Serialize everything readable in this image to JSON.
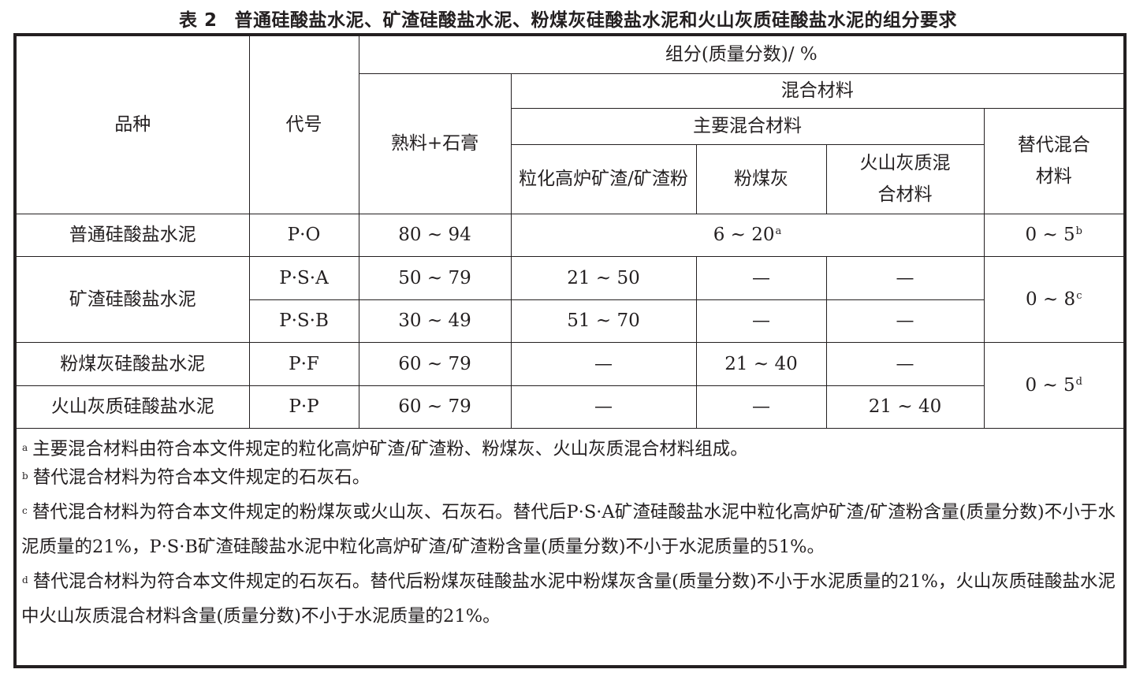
{
  "title": {
    "number": "表 2",
    "text": "普通硅酸盐水泥、矿渣硅酸盐水泥、粉煤灰硅酸盐水泥和火山灰质硅酸盐水泥的组分要求"
  },
  "header": {
    "variety": "品种",
    "code": "代号",
    "composition": "组分(质量分数)/ %",
    "clinker_gypsum": "熟料+石膏",
    "mixed_material": "混合材料",
    "main_mixed": "主要混合材料",
    "slag": "粒化高炉矿渣/矿渣粉",
    "fly_ash": "粉煤灰",
    "pozzolan": "火山灰质混合材料",
    "substitute": "替代混合材料"
  },
  "rows": [
    {
      "variety": "普通硅酸盐水泥",
      "code": "P·O",
      "clinker": "80 ~ 94",
      "main_mixed": "6 ~ 20",
      "main_mixed_note": "a",
      "substitute": "0 ~ 5",
      "substitute_note": "b"
    },
    {
      "variety": "矿渣硅酸盐水泥",
      "code": "P·S·A",
      "clinker": "50 ~ 79",
      "slag": "21 ~ 50",
      "fly_ash": "—",
      "pozzolan": "—",
      "substitute": "0 ~ 8",
      "substitute_note": "c"
    },
    {
      "code": "P·S·B",
      "clinker": "30 ~ 49",
      "slag": "51 ~ 70",
      "fly_ash": "—",
      "pozzolan": "—"
    },
    {
      "variety": "粉煤灰硅酸盐水泥",
      "code": "P·F",
      "clinker": "60 ~ 79",
      "slag": "—",
      "fly_ash": "21 ~ 40",
      "pozzolan": "—",
      "substitute": "0 ~ 5",
      "substitute_note": "d"
    },
    {
      "variety": "火山灰质硅酸盐水泥",
      "code": "P·P",
      "clinker": "60 ~ 79",
      "slag": "—",
      "fly_ash": "—",
      "pozzolan": "21 ~ 40"
    }
  ],
  "notes": [
    {
      "mark": "a",
      "text": "主要混合材料由符合本文件规定的粒化高炉矿渣/矿渣粉、粉煤灰、火山灰质混合材料组成。"
    },
    {
      "mark": "b",
      "text": "替代混合材料为符合本文件规定的石灰石。"
    },
    {
      "mark": "c",
      "text": "替代混合材料为符合本文件规定的粉煤灰或火山灰、石灰石。替代后P·S·A矿渣硅酸盐水泥中粒化高炉矿渣/矿渣粉含量(质量分数)不小于水泥质量的21%，P·S·B矿渣硅酸盐水泥中粒化高炉矿渣/矿渣粉含量(质量分数)不小于水泥质量的51%。"
    },
    {
      "mark": "d",
      "text": "替代混合材料为符合本文件规定的石灰石。替代后粉煤灰硅酸盐水泥中粉煤灰含量(质量分数)不小于水泥质量的21%，火山灰质硅酸盐水泥中火山灰质混合材料含量(质量分数)不小于水泥质量的21%。"
    }
  ]
}
